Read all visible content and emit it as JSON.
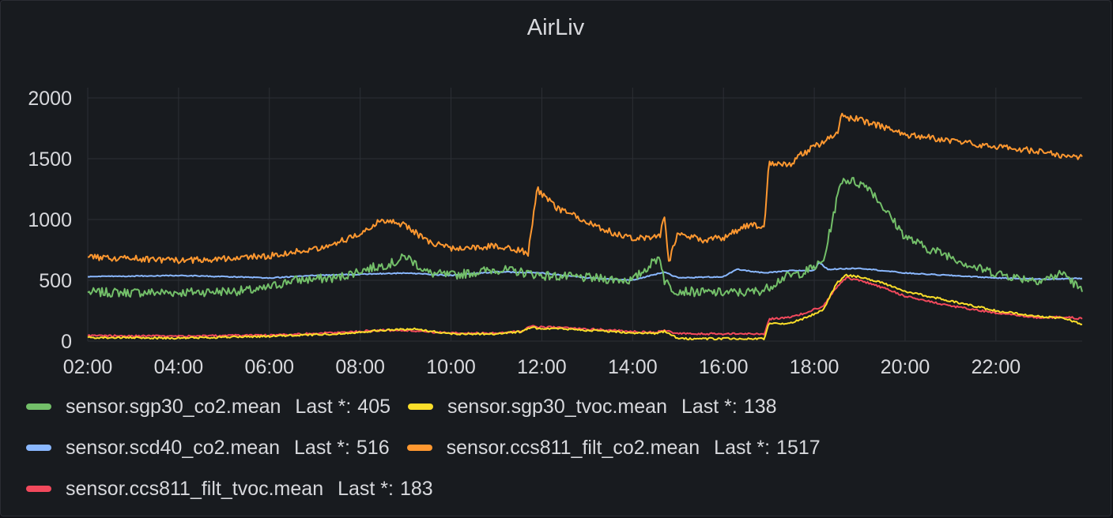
{
  "panel": {
    "title": "AirLiv"
  },
  "legend": {
    "last_label": "Last *:"
  },
  "colors": {
    "background": "#181b1f",
    "grid": "#2c2f35",
    "text": "#d8d9dd",
    "green": "#73bf69",
    "yellow": "#fade2a",
    "blue": "#8ab8ff",
    "orange": "#ff9830",
    "red": "#f2495c"
  },
  "chart_data": {
    "type": "line",
    "title": "AirLiv",
    "xlabel": "",
    "ylabel": "",
    "x_ticks": [
      "02:00",
      "04:00",
      "06:00",
      "08:00",
      "10:00",
      "12:00",
      "14:00",
      "16:00",
      "18:00",
      "20:00",
      "22:00"
    ],
    "y_ticks": [
      "0",
      "500",
      "1000",
      "1500",
      "2000"
    ],
    "xlim_hours": [
      2.0,
      23.9
    ],
    "ylim": [
      0,
      2000
    ],
    "grid": true,
    "legend_position": "bottom",
    "series": [
      {
        "name": "sensor.sgp30_co2.mean",
        "color_key": "green",
        "last": "405",
        "x": [
          2.0,
          3.0,
          4.0,
          5.0,
          5.8,
          6.5,
          7.5,
          8.0,
          8.8,
          9.0,
          9.5,
          10.0,
          11.0,
          11.5,
          12.0,
          13.0,
          14.0,
          14.6,
          14.7,
          14.9,
          15.5,
          16.5,
          16.9,
          17.3,
          17.8,
          18.2,
          18.4,
          18.6,
          18.8,
          19.2,
          19.6,
          20.0,
          20.5,
          21.0,
          21.5,
          22.0,
          22.5,
          23.0,
          23.5,
          23.9
        ],
        "y": [
          400,
          400,
          400,
          410,
          420,
          500,
          520,
          580,
          650,
          700,
          560,
          540,
          590,
          570,
          540,
          520,
          500,
          700,
          500,
          420,
          400,
          400,
          420,
          520,
          570,
          650,
          1000,
          1330,
          1320,
          1270,
          1060,
          860,
          760,
          700,
          610,
          560,
          520,
          500,
          560,
          405
        ],
        "noise": 38
      },
      {
        "name": "sensor.sgp30_tvoc.mean",
        "color_key": "yellow",
        "last": "138",
        "x": [
          2.0,
          4.0,
          6.0,
          7.5,
          8.5,
          9.2,
          10.0,
          11.0,
          11.6,
          11.7,
          12.5,
          13.5,
          14.5,
          14.7,
          15.0,
          16.9,
          17.0,
          17.5,
          17.8,
          18.2,
          18.5,
          18.7,
          19.0,
          19.5,
          20.0,
          21.0,
          22.0,
          23.0,
          23.5,
          23.9
        ],
        "y": [
          30,
          25,
          40,
          60,
          90,
          100,
          60,
          60,
          80,
          110,
          100,
          80,
          60,
          80,
          20,
          20,
          140,
          150,
          190,
          260,
          480,
          540,
          530,
          480,
          410,
          330,
          250,
          200,
          190,
          138
        ],
        "noise": 8
      },
      {
        "name": "sensor.scd40_co2.mean",
        "color_key": "blue",
        "last": "516",
        "x": [
          2.0,
          4.0,
          6.0,
          7.0,
          8.0,
          9.0,
          10.0,
          11.0,
          12.0,
          13.0,
          14.0,
          14.7,
          15.0,
          16.0,
          16.3,
          16.9,
          17.5,
          18.0,
          18.1,
          18.3,
          19.0,
          20.0,
          21.0,
          22.0,
          23.0,
          23.9
        ],
        "y": [
          530,
          540,
          520,
          540,
          550,
          560,
          540,
          570,
          560,
          520,
          500,
          570,
          520,
          530,
          590,
          560,
          580,
          580,
          650,
          590,
          600,
          560,
          540,
          520,
          510,
          516
        ],
        "noise": 4
      },
      {
        "name": "sensor.ccs811_filt_co2.mean",
        "color_key": "orange",
        "last": "1517",
        "x": [
          2.0,
          3.0,
          4.0,
          5.0,
          6.0,
          7.0,
          7.8,
          8.5,
          9.0,
          9.5,
          10.0,
          11.0,
          11.5,
          11.7,
          11.9,
          12.3,
          13.0,
          13.5,
          14.0,
          14.6,
          14.7,
          14.8,
          15.0,
          15.5,
          16.0,
          16.5,
          16.9,
          17.0,
          17.5,
          17.7,
          18.0,
          18.5,
          18.6,
          19.0,
          19.5,
          20.0,
          21.0,
          22.0,
          22.5,
          23.0,
          23.5,
          23.9
        ],
        "y": [
          690,
          680,
          660,
          680,
          700,
          760,
          850,
          1000,
          950,
          820,
          760,
          780,
          750,
          720,
          1250,
          1100,
          980,
          900,
          850,
          860,
          1040,
          650,
          900,
          830,
          850,
          950,
          950,
          1470,
          1450,
          1530,
          1600,
          1700,
          1850,
          1820,
          1760,
          1700,
          1650,
          1600,
          1580,
          1560,
          1520,
          1517
        ],
        "noise": 26
      },
      {
        "name": "sensor.ccs811_filt_tvoc.mean",
        "color_key": "red",
        "last": "183",
        "x": [
          2.0,
          4.0,
          6.0,
          7.5,
          8.5,
          9.2,
          10.0,
          11.0,
          11.6,
          11.7,
          12.5,
          13.5,
          14.5,
          14.7,
          15.0,
          16.9,
          17.0,
          17.5,
          17.8,
          18.2,
          18.5,
          18.7,
          19.0,
          19.5,
          20.0,
          21.0,
          22.0,
          23.0,
          23.5,
          23.9
        ],
        "y": [
          45,
          40,
          50,
          70,
          90,
          85,
          65,
          65,
          85,
          120,
          110,
          90,
          70,
          90,
          60,
          60,
          180,
          200,
          230,
          290,
          450,
          520,
          500,
          440,
          370,
          290,
          230,
          190,
          200,
          183
        ],
        "noise": 8
      }
    ]
  }
}
